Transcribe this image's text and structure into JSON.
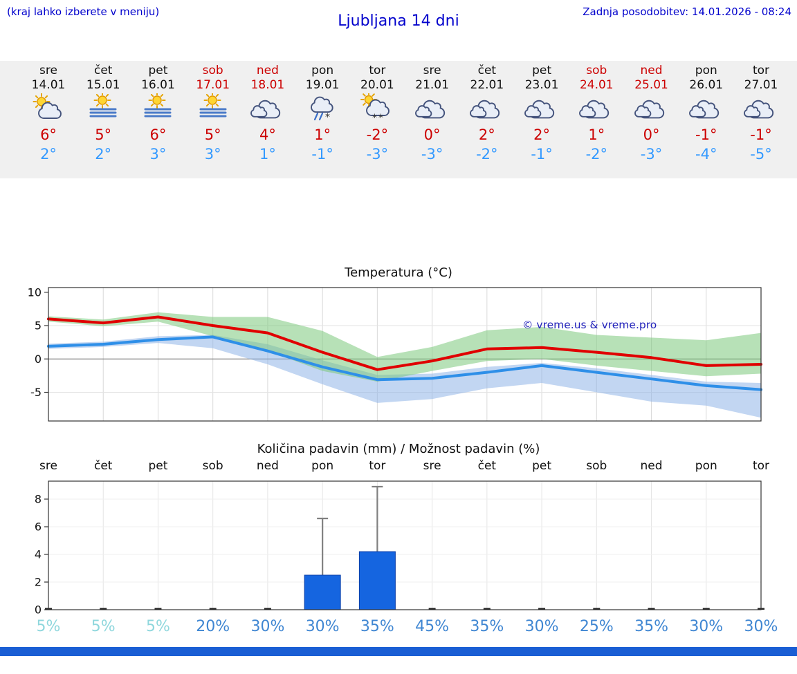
{
  "header": {
    "note": "(kraj lahko izberete v meniju)",
    "title": "Ljubljana 14 dni",
    "updated": "Zadnja posodobitev: 14.01.2026 - 08:24"
  },
  "forecast": {
    "days": [
      {
        "name": "sre",
        "date": "14.01",
        "weekend": false,
        "icon": "partly-sunny",
        "tmax": "6°",
        "tmin": "2°"
      },
      {
        "name": "čet",
        "date": "15.01",
        "weekend": false,
        "icon": "sun-fog",
        "tmax": "5°",
        "tmin": "2°"
      },
      {
        "name": "pet",
        "date": "16.01",
        "weekend": false,
        "icon": "sun-fog",
        "tmax": "6°",
        "tmin": "3°"
      },
      {
        "name": "sob",
        "date": "17.01",
        "weekend": true,
        "icon": "sun-fog",
        "tmax": "5°",
        "tmin": "3°"
      },
      {
        "name": "ned",
        "date": "18.01",
        "weekend": true,
        "icon": "cloudy",
        "tmax": "4°",
        "tmin": "1°"
      },
      {
        "name": "pon",
        "date": "19.01",
        "weekend": false,
        "icon": "sleet",
        "tmax": "1°",
        "tmin": "-1°"
      },
      {
        "name": "tor",
        "date": "20.01",
        "weekend": false,
        "icon": "snow-sun",
        "tmax": "-2°",
        "tmin": "-3°"
      },
      {
        "name": "sre",
        "date": "21.01",
        "weekend": false,
        "icon": "cloudy",
        "tmax": "0°",
        "tmin": "-3°"
      },
      {
        "name": "čet",
        "date": "22.01",
        "weekend": false,
        "icon": "cloudy",
        "tmax": "2°",
        "tmin": "-2°"
      },
      {
        "name": "pet",
        "date": "23.01",
        "weekend": false,
        "icon": "cloudy",
        "tmax": "2°",
        "tmin": "-1°"
      },
      {
        "name": "sob",
        "date": "24.01",
        "weekend": true,
        "icon": "cloudy",
        "tmax": "1°",
        "tmin": "-2°"
      },
      {
        "name": "ned",
        "date": "25.01",
        "weekend": true,
        "icon": "cloudy",
        "tmax": "0°",
        "tmin": "-3°"
      },
      {
        "name": "pon",
        "date": "26.01",
        "weekend": false,
        "icon": "cloudy",
        "tmax": "-1°",
        "tmin": "-4°"
      },
      {
        "name": "tor",
        "date": "27.01",
        "weekend": false,
        "icon": "cloudy",
        "tmax": "-1°",
        "tmin": "-5°"
      }
    ]
  },
  "chart_data": [
    {
      "type": "line",
      "title": "Temperatura (°C)",
      "categories": [
        "sre",
        "čet",
        "pet",
        "sob",
        "ned",
        "pon",
        "tor",
        "sre",
        "čet",
        "pet",
        "sob",
        "ned",
        "pon",
        "tor"
      ],
      "ylim": [
        -9.3,
        10.7
      ],
      "yticks": [
        10,
        5,
        0,
        -5
      ],
      "grid": true,
      "watermark": "© vreme.us & vreme.pro",
      "bands": [
        {
          "name": "min-range",
          "color": "#8fb4e8",
          "upper": [
            2.3,
            2.6,
            3.4,
            3.6,
            2.2,
            -0.2,
            -2.4,
            -2.2,
            -1.2,
            -0.6,
            -1.4,
            -2.4,
            -3.4,
            -3.6
          ],
          "lower": [
            1.5,
            1.8,
            2.4,
            1.6,
            -0.8,
            -3.8,
            -6.6,
            -6.0,
            -4.4,
            -3.6,
            -5.0,
            -6.4,
            -7.0,
            -8.8
          ]
        },
        {
          "name": "max-range",
          "color": "#7cc87c",
          "upper": [
            6.4,
            5.9,
            7.0,
            6.3,
            6.3,
            4.2,
            0.3,
            1.8,
            4.3,
            4.8,
            3.6,
            3.2,
            2.8,
            3.9
          ],
          "lower": [
            5.6,
            4.9,
            5.6,
            3.4,
            1.2,
            -1.8,
            -3.4,
            -1.8,
            -0.3,
            0.0,
            -1.0,
            -1.8,
            -2.6,
            -2.2
          ]
        }
      ],
      "series": [
        {
          "name": "max",
          "color": "#e00000",
          "values": [
            6.0,
            5.4,
            6.3,
            5.0,
            3.9,
            1.0,
            -1.6,
            -0.3,
            1.5,
            1.7,
            1.0,
            0.2,
            -1.0,
            -0.8
          ]
        },
        {
          "name": "min",
          "color": "#2e8fe8",
          "values": [
            1.9,
            2.2,
            2.9,
            3.3,
            1.2,
            -1.2,
            -3.1,
            -2.9,
            -2.0,
            -1.0,
            -2.0,
            -3.0,
            -4.0,
            -4.6
          ]
        }
      ]
    },
    {
      "type": "bar",
      "title": "Količina padavin (mm) / Možnost padavin (%)",
      "categories": [
        "sre",
        "čet",
        "pet",
        "sob",
        "ned",
        "pon",
        "tor",
        "sre",
        "čet",
        "pet",
        "sob",
        "ned",
        "pon",
        "tor"
      ],
      "ylim": [
        0,
        9.3
      ],
      "yticks": [
        0,
        2,
        4,
        6,
        8
      ],
      "values": [
        0,
        0,
        0,
        0,
        0,
        2.5,
        4.2,
        0,
        0,
        0,
        0,
        0,
        0,
        0
      ],
      "whisker_max": [
        0,
        0,
        0,
        0,
        0,
        6.6,
        8.9,
        0,
        0,
        0,
        0,
        0,
        0,
        0
      ],
      "probabilities": [
        "5%",
        "5%",
        "5%",
        "20%",
        "30%",
        "30%",
        "35%",
        "45%",
        "35%",
        "30%",
        "25%",
        "35%",
        "30%",
        "30%"
      ]
    }
  ],
  "colors": {
    "link_blue": "#0000cc",
    "weekend": "#cc0000",
    "tmax": "#cc0000",
    "tmin": "#3399ff",
    "bar": "#1565e0",
    "bar_stroke": "#0a3ea8",
    "whisker": "#808080",
    "prob": "#3f86d2",
    "prob_low": "#8fd7dd",
    "watermark": "#2222bb",
    "footer": "#1a5ed4"
  }
}
